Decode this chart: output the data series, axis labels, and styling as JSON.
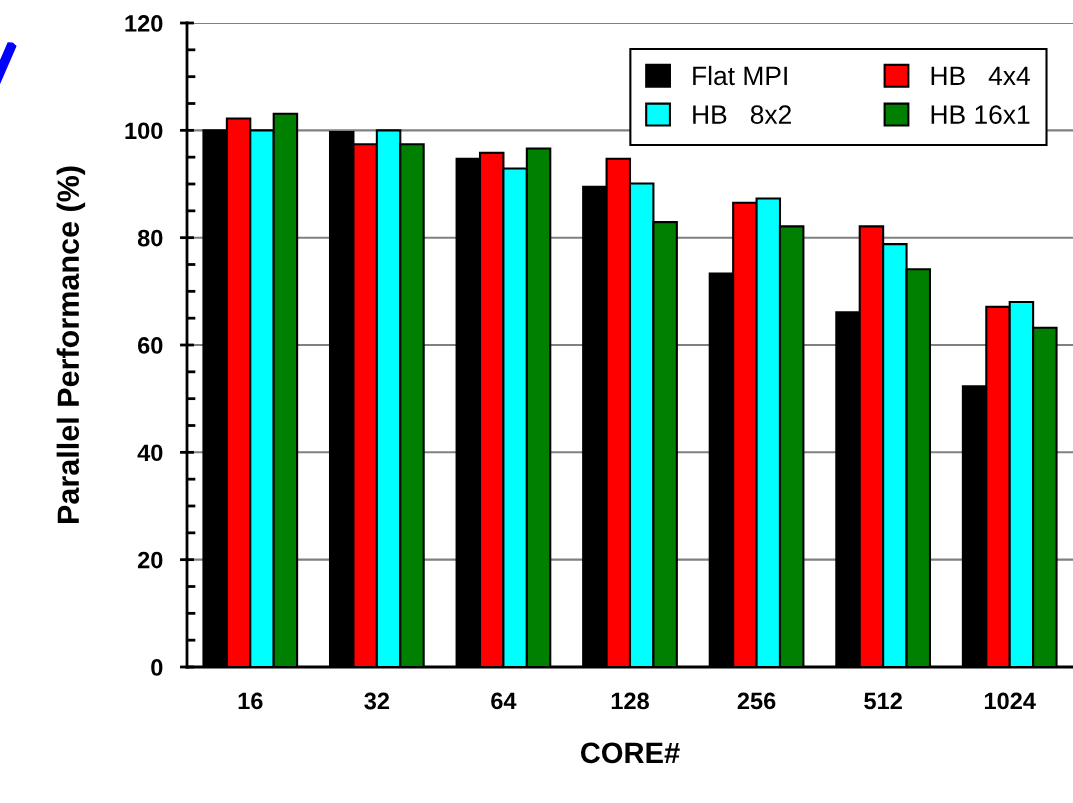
{
  "chart_data": {
    "type": "bar",
    "xlabel": "CORE#",
    "ylabel": "Parallel Performance (%)",
    "categories": [
      "16",
      "32",
      "64",
      "128",
      "256",
      "512",
      "1024"
    ],
    "series": [
      {
        "name": "Flat MPI",
        "color": "#000000",
        "values": [
          100,
          99.7,
          94.7,
          89.5,
          73.3,
          66.1,
          52.3
        ]
      },
      {
        "name": "HB   4x4",
        "color": "#ff0000",
        "values": [
          102.2,
          97.4,
          95.8,
          94.7,
          86.5,
          82.1,
          67.1
        ]
      },
      {
        "name": "HB   8x2",
        "color": "#00ffff",
        "values": [
          100,
          100,
          92.9,
          90.1,
          87.3,
          78.8,
          68.0
        ]
      },
      {
        "name": "HB 16x1",
        "color": "#008000",
        "values": [
          103.1,
          97.4,
          96.6,
          82.9,
          82.1,
          74.1,
          63.2
        ]
      }
    ],
    "ylim": [
      0,
      120
    ],
    "yticks": [
      0,
      20,
      40,
      60,
      80,
      100,
      120
    ],
    "grid": "y",
    "legend": "top right"
  }
}
